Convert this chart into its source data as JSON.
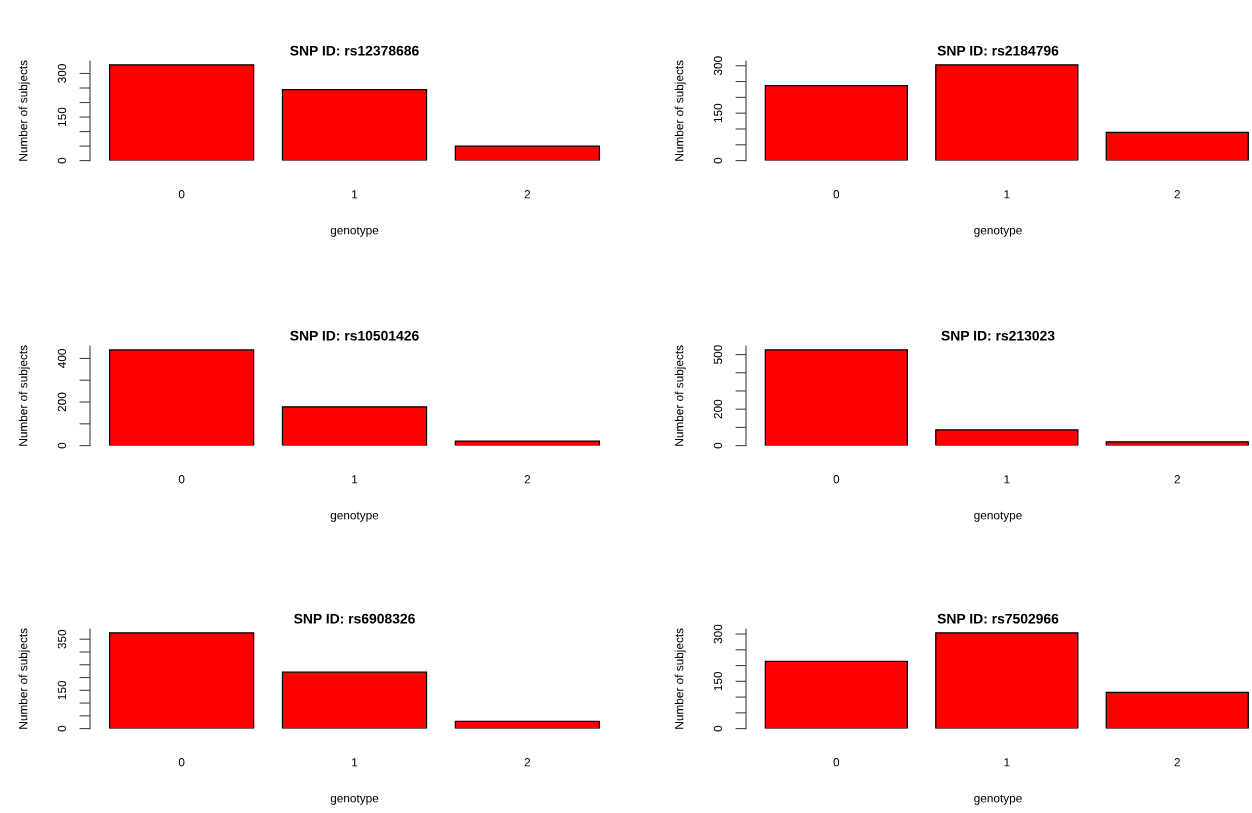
{
  "chart_data": [
    {
      "type": "bar",
      "title": "SNP ID: rs12378686",
      "xlabel": "genotype",
      "ylabel": "Number of subjects",
      "categories": [
        "0",
        "1",
        "2"
      ],
      "values": [
        330,
        244,
        50
      ],
      "color": "#ff0000",
      "ylim": [
        0,
        343
      ],
      "yticks": [
        0,
        {
          "value": 50,
          "label": null
        },
        {
          "value": 100,
          "label": null
        },
        150,
        {
          "value": 200,
          "label": null
        },
        {
          "value": 250,
          "label": null
        },
        300
      ]
    },
    {
      "type": "bar",
      "title": "SNP ID: rs2184796",
      "xlabel": "genotype",
      "ylabel": "Number of subjects",
      "categories": [
        "0",
        "1",
        "2"
      ],
      "values": [
        237,
        303,
        89
      ],
      "color": "#ff0000",
      "ylim": [
        0,
        315
      ],
      "yticks": [
        0,
        {
          "value": 50,
          "label": null
        },
        {
          "value": 100,
          "label": null
        },
        150,
        {
          "value": 200,
          "label": null
        },
        {
          "value": 250,
          "label": null
        },
        300
      ]
    },
    {
      "type": "bar",
      "title": "SNP ID: rs10501426",
      "xlabel": "genotype",
      "ylabel": "Number of subjects",
      "categories": [
        "0",
        "1",
        "2"
      ],
      "values": [
        439,
        178,
        20
      ],
      "color": "#ff0000",
      "ylim": [
        0,
        457
      ],
      "yticks": [
        0,
        {
          "value": 100,
          "label": null
        },
        200,
        {
          "value": 300,
          "label": null
        },
        400
      ]
    },
    {
      "type": "bar",
      "title": "SNP ID: rs213023",
      "xlabel": "genotype",
      "ylabel": "Number of subjects",
      "categories": [
        "0",
        "1",
        "2"
      ],
      "values": [
        526,
        87,
        21
      ],
      "color": "#ff0000",
      "ylim": [
        0,
        547
      ],
      "yticks": [
        0,
        {
          "value": 100,
          "label": null
        },
        200,
        {
          "value": 300,
          "label": null
        },
        {
          "value": 400,
          "label": null
        },
        500
      ]
    },
    {
      "type": "bar",
      "title": "SNP ID: rs6908326",
      "xlabel": "genotype",
      "ylabel": "Number of subjects",
      "categories": [
        "0",
        "1",
        "2"
      ],
      "values": [
        375,
        221,
        28
      ],
      "color": "#ff0000",
      "ylim": [
        0,
        390
      ],
      "yticks": [
        0,
        {
          "value": 50,
          "label": null
        },
        {
          "value": 100,
          "label": null
        },
        150,
        {
          "value": 200,
          "label": null
        },
        {
          "value": 250,
          "label": null
        },
        {
          "value": 300,
          "label": null
        },
        350
      ]
    },
    {
      "type": "bar",
      "title": "SNP ID: rs7502966",
      "xlabel": "genotype",
      "ylabel": "Number of subjects",
      "categories": [
        "0",
        "1",
        "2"
      ],
      "values": [
        213,
        304,
        115
      ],
      "color": "#ff0000",
      "ylim": [
        0,
        316
      ],
      "yticks": [
        0,
        {
          "value": 50,
          "label": null
        },
        {
          "value": 100,
          "label": null
        },
        150,
        {
          "value": 200,
          "label": null
        },
        {
          "value": 250,
          "label": null
        },
        300
      ]
    }
  ]
}
